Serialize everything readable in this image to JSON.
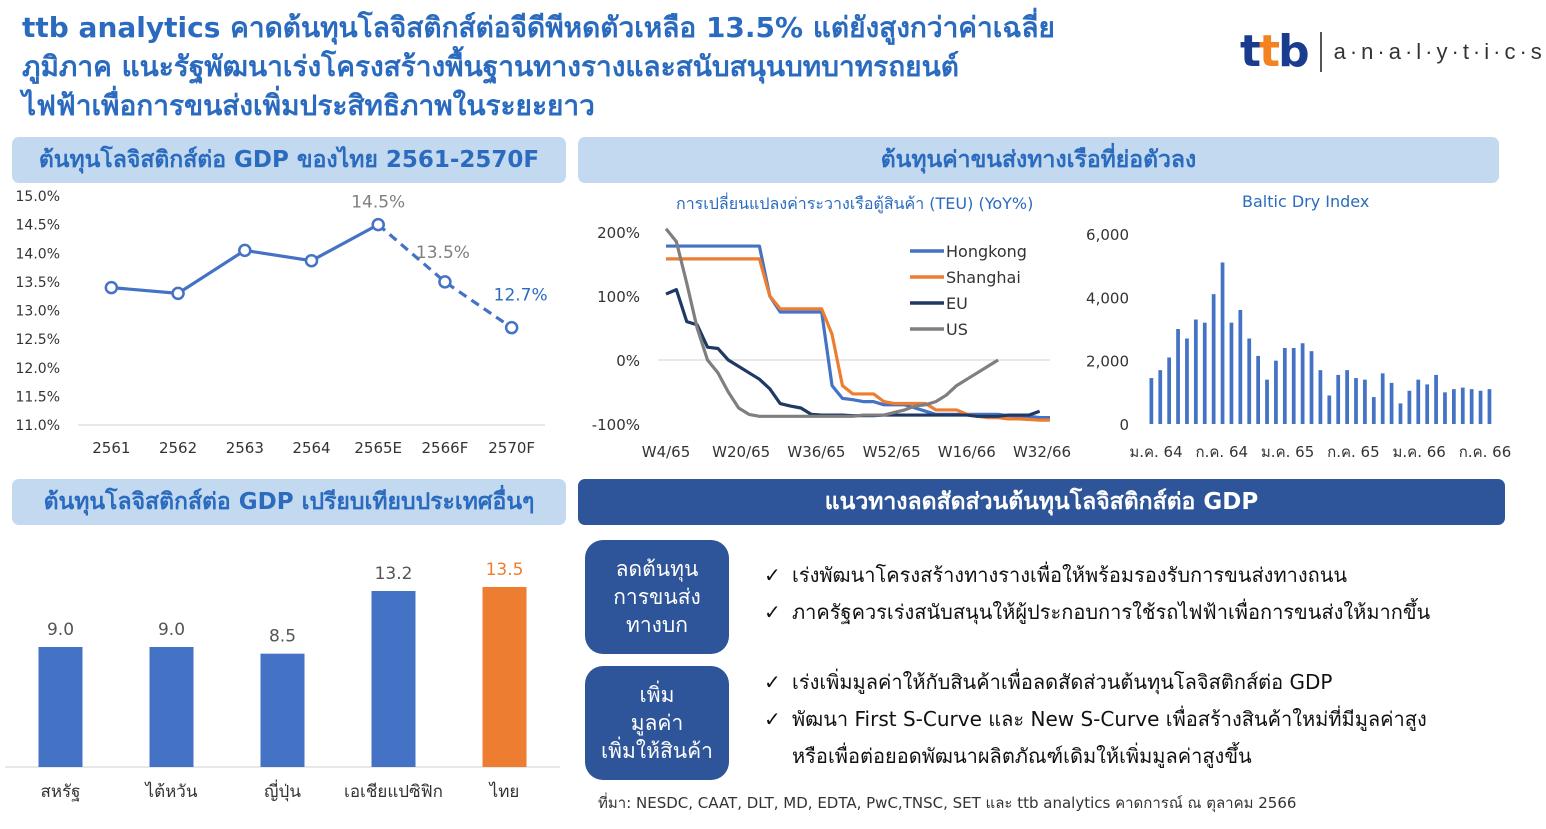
{
  "headline": [
    "ttb analytics คาดต้นทุนโลจิสติกส์ต่อจีดีพีหดตัวเหลือ 13.5% แต่ยังสูงกว่าค่าเฉลี่ย",
    "ภูมิภาค แนะรัฐพัฒนาเร่งโครงสร้างพื้นฐานทางรางและสนับสนุนบทบาทรถยนต์",
    "ไฟฟ้าเพื่อการขนส่งเพิ่มประสิทธิภาพในระยะยาว"
  ],
  "logo": {
    "brand": "ttb",
    "suffix": "a·n·a·l·y·t·i·c·s"
  },
  "colors": {
    "title_blue": "#2a6bbf",
    "banner_light": "#c3d9ef",
    "banner_dark": "#2e5599",
    "series_blue": "#4472c4",
    "series_orange": "#ed7d31",
    "series_navy": "#1f3864",
    "series_gray": "#7f7f7f"
  },
  "sections": {
    "logistics_gdp_thai": "ต้นทุนโลจิสติกส์ต่อ GDP ของไทย 2561-2570F",
    "shipping_cost": "ต้นทุนค่าขนส่งทางเรือที่ย่อตัวลง",
    "compare": "ต้นทุนโลจิสติกส์ต่อ GDP เปรียบเทียบประเทศอื่นๆ",
    "guidelines": "แนวทางลดสัดส่วนต้นทุนโลจิสติกส์ต่อ GDP"
  },
  "chart_data": [
    {
      "type": "line",
      "title": "ต้นทุนโลจิสติกส์ต่อ GDP ของไทย 2561-2570F",
      "categories": [
        "2561",
        "2562",
        "2563",
        "2564",
        "2565E",
        "2566F",
        "2570F"
      ],
      "values": [
        13.4,
        13.3,
        14.05,
        13.87,
        14.5,
        13.5,
        12.7
      ],
      "dashed_from_index": 4,
      "data_labels": {
        "4": "14.5%",
        "5": "13.5%",
        "6": "12.7%"
      },
      "y_ticks": [
        "15.0%",
        "14.5%",
        "14.0%",
        "13.5%",
        "13.0%",
        "12.5%",
        "12.0%",
        "11.5%",
        "11.0%"
      ],
      "ylim": [
        11.0,
        15.0
      ]
    },
    {
      "type": "line",
      "title": "การเปลี่ยนแปลงค่าระวางเรือตู้สินค้า (TEU) (YoY%)",
      "x_ticks": [
        "W4/65",
        "W20/65",
        "W36/65",
        "W52/65",
        "W16/66",
        "W32/66"
      ],
      "y_ticks": [
        "200%",
        "100%",
        "0%",
        "-100%"
      ],
      "ylim": [
        -100,
        200
      ],
      "legend_position": "top-right",
      "series": [
        {
          "name": "Hongkong",
          "color": "#4472c4",
          "values": [
            178,
            178,
            178,
            178,
            178,
            178,
            178,
            178,
            178,
            178,
            100,
            75,
            75,
            75,
            75,
            75,
            -40,
            -60,
            -62,
            -65,
            -65,
            -70,
            -70,
            -70,
            -75,
            -80,
            -85,
            -85,
            -85,
            -85,
            -85,
            -85,
            -85,
            -87,
            -88,
            -88,
            -90,
            -90
          ]
        },
        {
          "name": "Shanghai",
          "color": "#ed7d31",
          "values": [
            158,
            158,
            158,
            158,
            158,
            158,
            158,
            158,
            158,
            158,
            100,
            80,
            80,
            80,
            80,
            80,
            40,
            -40,
            -53,
            -53,
            -53,
            -65,
            -68,
            -68,
            -68,
            -68,
            -78,
            -78,
            -78,
            -85,
            -88,
            -90,
            -90,
            -92,
            -92,
            -93,
            -94,
            -94
          ]
        },
        {
          "name": "EU",
          "color": "#1f3864",
          "values": [
            103,
            110,
            60,
            55,
            20,
            18,
            0,
            -10,
            -20,
            -30,
            -45,
            -68,
            -72,
            -75,
            -85,
            -86,
            -86,
            -86,
            -87,
            -87,
            -87,
            -86,
            -86,
            -86,
            -86,
            -86,
            -86,
            -86,
            -86,
            -86,
            -88,
            -88,
            -88,
            -86,
            -86,
            -86,
            -80
          ]
        },
        {
          "name": "US",
          "color": "#7f7f7f",
          "values": [
            205,
            185,
            120,
            50,
            0,
            -20,
            -50,
            -75,
            -85,
            -88,
            -88,
            -88,
            -88,
            -88,
            -88,
            -88,
            -88,
            -88,
            -88,
            -86,
            -86,
            -86,
            -82,
            -78,
            -72,
            -70,
            -65,
            -55,
            -40,
            -30,
            -20,
            -10,
            0
          ]
        }
      ]
    },
    {
      "type": "bar",
      "title": "Baltic Dry Index",
      "x_ticks": [
        "ม.ค. 64",
        "ก.ค. 64",
        "ม.ค. 65",
        "ก.ค. 65",
        "ม.ค. 66",
        "ก.ค. 66"
      ],
      "y_ticks": [
        "6,000",
        "4,000",
        "2,000",
        "0"
      ],
      "ylim": [
        0,
        6000
      ],
      "values": [
        1450,
        1700,
        2100,
        3000,
        2700,
        3300,
        3200,
        4100,
        5100,
        3200,
        3600,
        2700,
        2150,
        1400,
        2000,
        2400,
        2400,
        2550,
        2300,
        1700,
        900,
        1550,
        1700,
        1450,
        1400,
        850,
        1600,
        1300,
        650,
        1050,
        1400,
        1250,
        1550,
        1000,
        1100,
        1150,
        1100,
        1050,
        1100
      ]
    },
    {
      "type": "bar",
      "title": "ต้นทุนโลจิสติกส์ต่อ GDP เปรียบเทียบประเทศอื่นๆ",
      "categories": [
        "สหรัฐ",
        "ไต้หวัน",
        "ญี่ปุ่น",
        "เอเชียแปซิฟิก",
        "ไทย"
      ],
      "values": [
        9.0,
        9.0,
        8.5,
        13.2,
        13.5
      ],
      "data_labels": [
        "9.0",
        "9.0",
        "8.5",
        "13.2",
        "13.5"
      ],
      "highlight_index": 4,
      "ylim": [
        0,
        15
      ]
    }
  ],
  "guidelines": [
    {
      "pill": [
        "ลดต้นทุน",
        "การขนส่ง",
        "ทางบก"
      ],
      "bullets": [
        "เร่งพัฒนาโครงสร้างทางรางเพื่อให้พร้อมรองรับการขนส่งทางถนน",
        "ภาครัฐควรเร่งสนับสนุนให้ผู้ประกอบการใช้รถไฟฟ้าเพื่อการขนส่งให้มากขึ้น"
      ]
    },
    {
      "pill": [
        "เพิ่ม",
        "มูลค่า",
        "เพิ่มให้สินค้า"
      ],
      "bullets": [
        "เร่งเพิ่มมูลค่าให้กับสินค้าเพื่อลดสัดส่วนต้นทุนโลจิสติกส์ต่อ GDP",
        "พัฒนา First S-Curve และ New S-Curve เพื่อสร้างสินค้าใหม่ที่มีมูลค่าสูง",
        "หรือเพื่อต่อยอดพัฒนาผลิตภัณฑ์เดิมให้เพิ่มมูลค่าสูงขึ้น"
      ]
    }
  ],
  "check_mark": "✓",
  "source": "ที่มา: NESDC, CAAT, DLT, MD, EDTA, PwC,TNSC, SET และ ttb analytics คาดการณ์ ณ ตุลาคม 2566"
}
